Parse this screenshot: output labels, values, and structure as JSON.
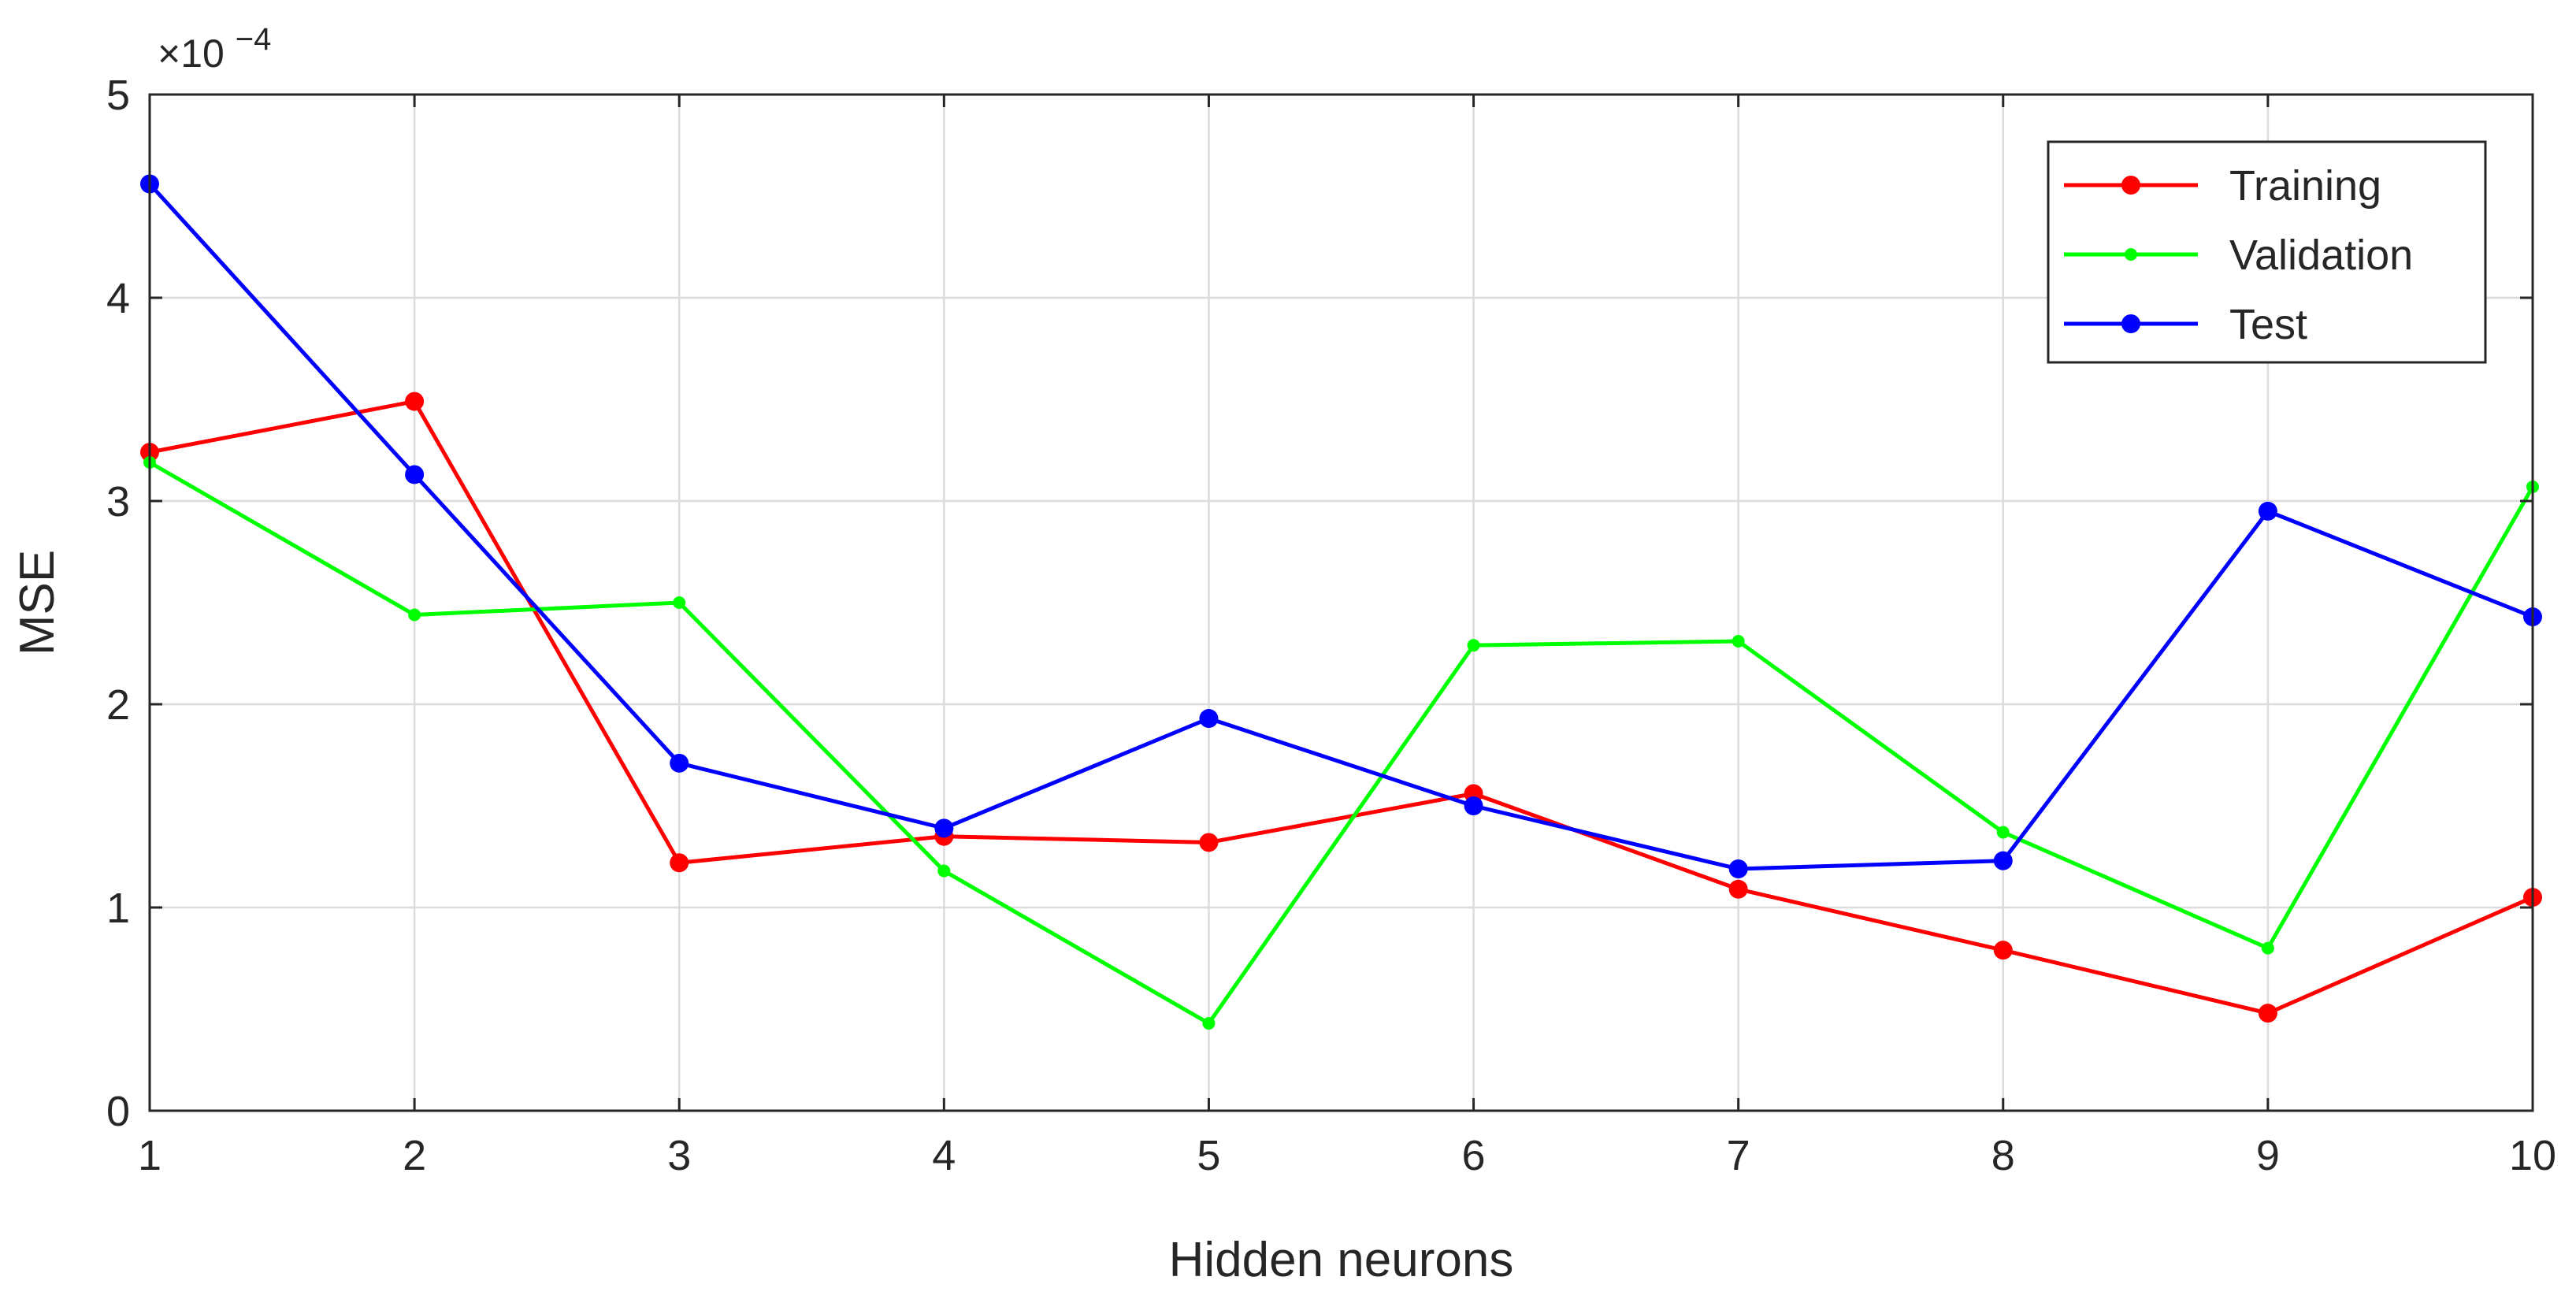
{
  "chart_data": {
    "type": "line",
    "title": "",
    "xlabel": "Hidden neurons",
    "ylabel": "MSE",
    "y_exponent_label": "×10",
    "y_exponent_value": "−4",
    "x": [
      1,
      2,
      3,
      4,
      5,
      6,
      7,
      8,
      9,
      10
    ],
    "xlim": [
      1,
      10
    ],
    "ylim": [
      0,
      5
    ],
    "xticks": [
      "1",
      "2",
      "3",
      "4",
      "5",
      "6",
      "7",
      "8",
      "9",
      "10"
    ],
    "yticks": [
      "0",
      "1",
      "2",
      "3",
      "4",
      "5"
    ],
    "grid": true,
    "legend_position": "top-right",
    "series": [
      {
        "name": "Training",
        "color": "#ff0000",
        "marker": "large-dot",
        "values": [
          3.24,
          3.49,
          1.22,
          1.35,
          1.32,
          1.56,
          1.09,
          0.79,
          0.48,
          1.05
        ]
      },
      {
        "name": "Validation",
        "color": "#00ff00",
        "marker": "small-dot",
        "values": [
          3.19,
          2.44,
          2.5,
          1.18,
          0.43,
          2.29,
          2.31,
          1.37,
          0.8,
          3.07
        ]
      },
      {
        "name": "Test",
        "color": "#0000ff",
        "marker": "large-dot",
        "values": [
          4.56,
          3.13,
          1.71,
          1.39,
          1.93,
          1.5,
          1.19,
          1.23,
          2.95,
          2.43
        ]
      }
    ]
  }
}
